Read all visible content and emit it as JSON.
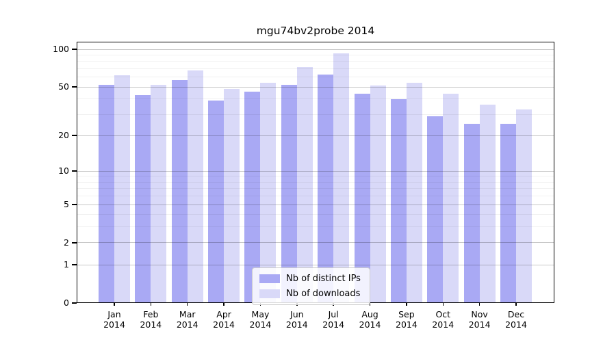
{
  "title": "mgu74bv2probe 2014",
  "chart_data": {
    "type": "bar",
    "title": "mgu74bv2probe 2014",
    "categories": [
      "Jan",
      "Feb",
      "Mar",
      "Apr",
      "May",
      "Jun",
      "Jul",
      "Aug",
      "Sep",
      "Oct",
      "Nov",
      "Dec"
    ],
    "category_year": "2014",
    "series": [
      {
        "name": "Nb of distinct IPs",
        "color": "#a9a9f4",
        "values": [
          52,
          43,
          57,
          39,
          46,
          52,
          63,
          44,
          40,
          29,
          25,
          25
        ]
      },
      {
        "name": "Nb of downloads",
        "color": "#d9d9f8",
        "values": [
          62,
          52,
          68,
          48,
          54,
          72,
          93,
          51,
          54,
          44,
          36,
          33
        ]
      }
    ],
    "y_scale": "log10(1+x)",
    "y_max": 115,
    "y_ticks": [
      100,
      50,
      20,
      10,
      5,
      2,
      1,
      0
    ],
    "y_minor_gridlines": [
      3,
      4,
      6,
      7,
      8,
      9,
      30,
      40,
      60,
      70,
      80,
      90
    ],
    "grid": "horizontal",
    "legend_position": "lower center inside plot"
  },
  "colors": {
    "ips_bar": "#a9a9f4",
    "downloads_bar": "#d9d9f8",
    "major_gridline": "#c7c7c7",
    "minor_gridline": "#f1f1f1",
    "axis": "#000000",
    "background": "#ffffff",
    "legend_border": "#cccccc"
  }
}
